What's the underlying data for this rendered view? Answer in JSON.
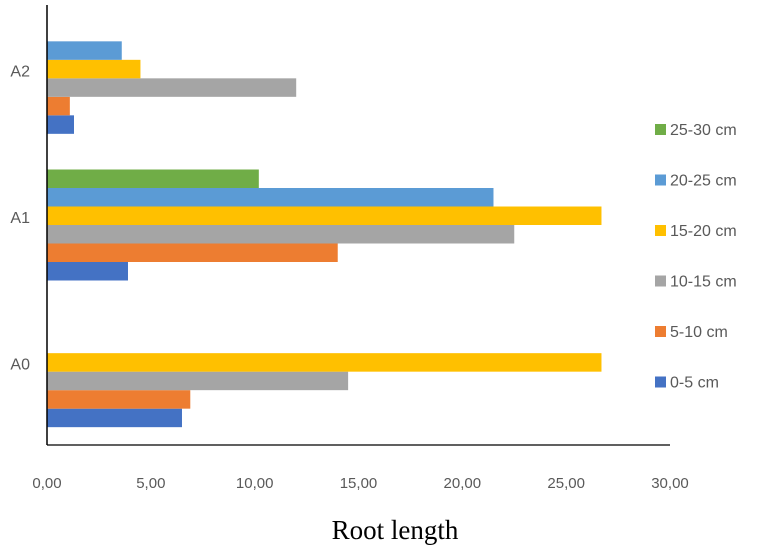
{
  "chart_data": {
    "type": "bar",
    "orientation": "horizontal",
    "categories": [
      "A0",
      "A1",
      "A2"
    ],
    "series": [
      {
        "name": "0-5 cm",
        "color": "#4472C4",
        "values": [
          6.5,
          3.9,
          1.3
        ]
      },
      {
        "name": "5-10 cm",
        "color": "#ED7D31",
        "values": [
          6.9,
          14.0,
          1.1
        ]
      },
      {
        "name": "10-15 cm",
        "color": "#A5A5A5",
        "values": [
          14.5,
          22.5,
          12.0
        ]
      },
      {
        "name": "15-20 cm",
        "color": "#FFC000",
        "values": [
          26.7,
          26.7,
          4.5
        ]
      },
      {
        "name": "20-25 cm",
        "color": "#5B9BD5",
        "values": [
          null,
          21.5,
          3.6
        ]
      },
      {
        "name": "25-30 cm",
        "color": "#70AD47",
        "values": [
          null,
          10.2,
          null
        ]
      }
    ],
    "xlabel": "Root length",
    "ylabel": "",
    "title": "",
    "xlim": [
      0,
      30
    ],
    "xticks": [
      "0,00",
      "5,00",
      "10,00",
      "15,00",
      "20,00",
      "25,00",
      "30,00"
    ],
    "grid": false,
    "legend_position": "right"
  }
}
